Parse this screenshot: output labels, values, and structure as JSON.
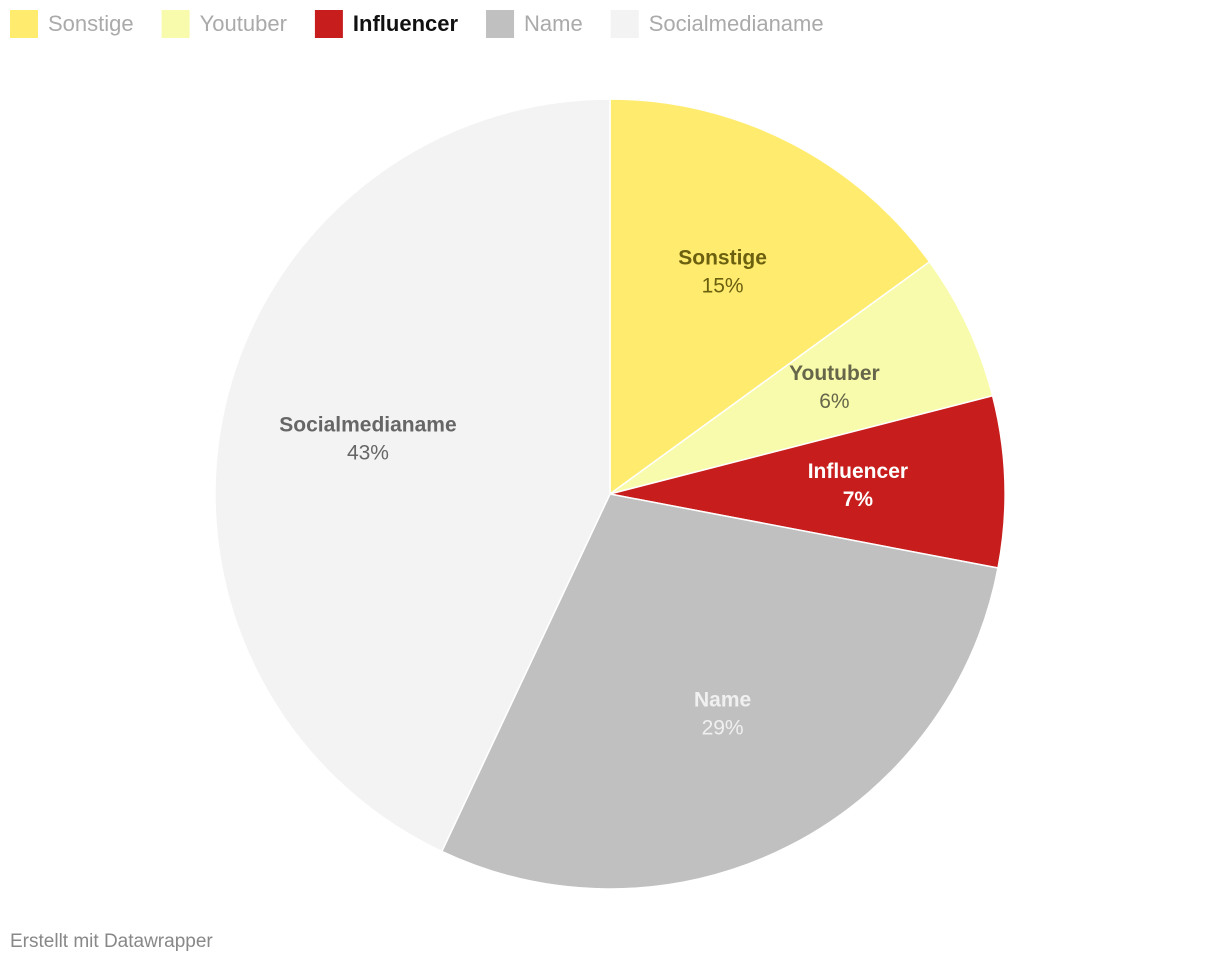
{
  "chart_data": {
    "type": "pie",
    "categories": [
      "Sonstige",
      "Youtuber",
      "Influencer",
      "Name",
      "Socialmedianame"
    ],
    "values": [
      15,
      6,
      7,
      29,
      43
    ],
    "value_labels": [
      "15%",
      "6%",
      "7%",
      "29%",
      "43%"
    ],
    "colors": [
      "#ffec6e",
      "#f8fbab",
      "#c71e1d",
      "#c0c0c0",
      "#f3f3f3"
    ],
    "legend": "top-left"
  },
  "footer": "Erstellt mit Datawrapper"
}
